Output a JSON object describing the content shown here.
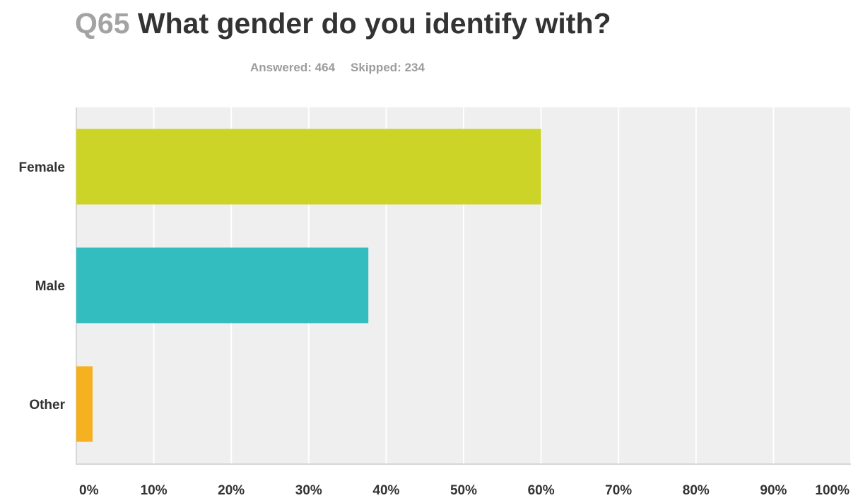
{
  "question": {
    "number": "Q65",
    "text": "What gender do you identify with?"
  },
  "stats": {
    "answered_label": "Answered:",
    "answered_value": "464",
    "skipped_label": "Skipped:",
    "skipped_value": "234"
  },
  "chart_data": {
    "type": "bar",
    "orientation": "horizontal",
    "title": "Q65 What gender do you identify with?",
    "categories": [
      "Female",
      "Male",
      "Other"
    ],
    "values": [
      60.0,
      37.7,
      2.1
    ],
    "value_unit": "%",
    "colors": [
      "#cdd428",
      "#33bdbf",
      "#f6b121"
    ],
    "xlim": [
      0,
      100
    ],
    "xticks": [
      "0%",
      "10%",
      "20%",
      "30%",
      "40%",
      "50%",
      "60%",
      "70%",
      "80%",
      "90%",
      "100%"
    ],
    "grid": true,
    "plot_background": "#efefef",
    "legend": "none"
  }
}
